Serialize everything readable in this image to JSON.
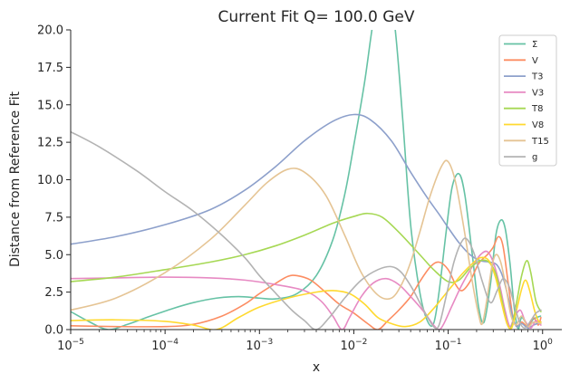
{
  "chart_data": {
    "type": "line",
    "title": "Current Fit Q= 100.0 GeV",
    "xlabel": "x",
    "ylabel": "Distance from Reference Fit",
    "xscale": "log",
    "xlim": [
      1e-05,
      1.6
    ],
    "ylim": [
      0,
      20
    ],
    "legend_placement": "top-right",
    "grid": false,
    "x_ticks": [
      {
        "value": 1e-05,
        "base": "10",
        "exp": "−5"
      },
      {
        "value": 0.0001,
        "base": "10",
        "exp": "−4"
      },
      {
        "value": 0.001,
        "base": "10",
        "exp": "−3"
      },
      {
        "value": 0.01,
        "base": "10",
        "exp": "−2"
      },
      {
        "value": 0.1,
        "base": "10",
        "exp": "−1"
      },
      {
        "value": 1,
        "base": "10",
        "exp": "0"
      }
    ],
    "y_ticks": [
      {
        "value": 0,
        "label": "0.0"
      },
      {
        "value": 2.5,
        "label": "2.5"
      },
      {
        "value": 5,
        "label": "5.0"
      },
      {
        "value": 7.5,
        "label": "7.5"
      },
      {
        "value": 10,
        "label": "10.0"
      },
      {
        "value": 12.5,
        "label": "12.5"
      },
      {
        "value": 15,
        "label": "15.0"
      },
      {
        "value": 17.5,
        "label": "17.5"
      },
      {
        "value": 20,
        "label": "20.0"
      }
    ],
    "series": [
      {
        "name": "Σ",
        "color": "#66c2a5",
        "points": [
          [
            1e-05,
            1.2
          ],
          [
            1.6e-05,
            0.5
          ],
          [
            2.5e-05,
            0.0
          ],
          [
            4e-05,
            0.35
          ],
          [
            7e-05,
            0.9
          ],
          [
            0.00012,
            1.4
          ],
          [
            0.0002,
            1.8
          ],
          [
            0.00035,
            2.1
          ],
          [
            0.0006,
            2.2
          ],
          [
            0.001,
            2.1
          ],
          [
            0.0015,
            2.05
          ],
          [
            0.0025,
            2.4
          ],
          [
            0.004,
            3.6
          ],
          [
            0.006,
            6.0
          ],
          [
            0.008,
            9.0
          ],
          [
            0.01,
            12.3
          ],
          [
            0.013,
            16.5
          ],
          [
            0.016,
            20.5
          ],
          [
            0.02,
            23.5
          ],
          [
            0.024,
            22.8
          ],
          [
            0.028,
            19.5
          ],
          [
            0.033,
            14.0
          ],
          [
            0.04,
            7.0
          ],
          [
            0.05,
            2.5
          ],
          [
            0.06,
            0.6
          ],
          [
            0.07,
            0.4
          ],
          [
            0.08,
            2.5
          ],
          [
            0.095,
            6.5
          ],
          [
            0.11,
            9.5
          ],
          [
            0.13,
            10.4
          ],
          [
            0.15,
            9.0
          ],
          [
            0.18,
            5.0
          ],
          [
            0.21,
            1.5
          ],
          [
            0.24,
            0.5
          ],
          [
            0.28,
            3.0
          ],
          [
            0.32,
            6.3
          ],
          [
            0.36,
            7.3
          ],
          [
            0.4,
            6.8
          ],
          [
            0.45,
            4.5
          ],
          [
            0.5,
            1.5
          ],
          [
            0.55,
            0.05
          ],
          [
            0.6,
            0.8
          ],
          [
            0.7,
            0.3
          ],
          [
            0.8,
            0.7
          ],
          [
            0.95,
            0.9
          ]
        ]
      },
      {
        "name": "V",
        "color": "#fc8d62",
        "points": [
          [
            1e-05,
            0.25
          ],
          [
            3e-05,
            0.2
          ],
          [
            0.0001,
            0.2
          ],
          [
            0.0002,
            0.35
          ],
          [
            0.0004,
            0.9
          ],
          [
            0.0007,
            1.7
          ],
          [
            0.001,
            2.4
          ],
          [
            0.0015,
            3.1
          ],
          [
            0.002,
            3.55
          ],
          [
            0.0025,
            3.6
          ],
          [
            0.0035,
            3.3
          ],
          [
            0.005,
            2.5
          ],
          [
            0.007,
            1.7
          ],
          [
            0.01,
            1.1
          ],
          [
            0.014,
            0.4
          ],
          [
            0.018,
            0.0
          ],
          [
            0.023,
            0.6
          ],
          [
            0.03,
            1.3
          ],
          [
            0.04,
            2.2
          ],
          [
            0.05,
            3.2
          ],
          [
            0.065,
            4.2
          ],
          [
            0.08,
            4.5
          ],
          [
            0.1,
            4.0
          ],
          [
            0.12,
            3.0
          ],
          [
            0.14,
            2.6
          ],
          [
            0.17,
            3.2
          ],
          [
            0.21,
            4.4
          ],
          [
            0.26,
            5.0
          ],
          [
            0.3,
            5.5
          ],
          [
            0.34,
            6.2
          ],
          [
            0.38,
            5.6
          ],
          [
            0.43,
            3.2
          ],
          [
            0.48,
            1.0
          ],
          [
            0.53,
            0.2
          ],
          [
            0.6,
            0.5
          ],
          [
            0.7,
            0.2
          ],
          [
            0.8,
            0.8
          ],
          [
            0.9,
            0.3
          ],
          [
            0.96,
            0.8
          ]
        ]
      },
      {
        "name": "T3",
        "color": "#8da0cb",
        "points": [
          [
            1e-05,
            5.7
          ],
          [
            3e-05,
            6.2
          ],
          [
            0.0001,
            7.0
          ],
          [
            0.0003,
            8.0
          ],
          [
            0.0007,
            9.3
          ],
          [
            0.0015,
            10.9
          ],
          [
            0.003,
            12.6
          ],
          [
            0.006,
            13.9
          ],
          [
            0.01,
            14.35
          ],
          [
            0.015,
            14.0
          ],
          [
            0.025,
            12.6
          ],
          [
            0.04,
            10.5
          ],
          [
            0.06,
            8.8
          ],
          [
            0.08,
            7.7
          ],
          [
            0.1,
            6.8
          ],
          [
            0.13,
            5.8
          ],
          [
            0.17,
            5.0
          ],
          [
            0.22,
            4.6
          ],
          [
            0.28,
            4.5
          ],
          [
            0.33,
            4.3
          ],
          [
            0.38,
            3.5
          ],
          [
            0.43,
            2.2
          ],
          [
            0.48,
            0.9
          ],
          [
            0.53,
            0.2
          ],
          [
            0.6,
            0.4
          ],
          [
            0.7,
            0.1
          ],
          [
            0.8,
            0.3
          ],
          [
            0.96,
            0.5
          ]
        ]
      },
      {
        "name": "V3",
        "color": "#e78ac3",
        "points": [
          [
            1e-05,
            3.4
          ],
          [
            3e-05,
            3.45
          ],
          [
            0.0001,
            3.5
          ],
          [
            0.0003,
            3.45
          ],
          [
            0.0007,
            3.3
          ],
          [
            0.0015,
            3.0
          ],
          [
            0.003,
            2.6
          ],
          [
            0.0045,
            1.9
          ],
          [
            0.006,
            0.9
          ],
          [
            0.0075,
            0.0
          ],
          [
            0.009,
            0.8
          ],
          [
            0.012,
            2.2
          ],
          [
            0.016,
            3.1
          ],
          [
            0.022,
            3.4
          ],
          [
            0.03,
            3.0
          ],
          [
            0.04,
            2.2
          ],
          [
            0.055,
            1.2
          ],
          [
            0.07,
            0.3
          ],
          [
            0.08,
            0.0
          ],
          [
            0.09,
            0.4
          ],
          [
            0.11,
            1.6
          ],
          [
            0.14,
            3.0
          ],
          [
            0.18,
            4.2
          ],
          [
            0.22,
            5.0
          ],
          [
            0.26,
            5.2
          ],
          [
            0.3,
            4.5
          ],
          [
            0.35,
            3.0
          ],
          [
            0.4,
            1.3
          ],
          [
            0.45,
            0.2
          ],
          [
            0.5,
            0.8
          ],
          [
            0.58,
            1.3
          ],
          [
            0.65,
            0.6
          ],
          [
            0.75,
            0.1
          ],
          [
            0.85,
            0.6
          ],
          [
            0.96,
            0.3
          ]
        ]
      },
      {
        "name": "T8",
        "color": "#a6d854",
        "points": [
          [
            1e-05,
            3.2
          ],
          [
            3e-05,
            3.5
          ],
          [
            0.0001,
            4.0
          ],
          [
            0.0003,
            4.5
          ],
          [
            0.0007,
            5.0
          ],
          [
            0.0015,
            5.6
          ],
          [
            0.003,
            6.3
          ],
          [
            0.006,
            7.1
          ],
          [
            0.01,
            7.55
          ],
          [
            0.014,
            7.75
          ],
          [
            0.02,
            7.5
          ],
          [
            0.03,
            6.5
          ],
          [
            0.05,
            5.0
          ],
          [
            0.07,
            4.0
          ],
          [
            0.1,
            3.2
          ],
          [
            0.13,
            3.3
          ],
          [
            0.17,
            4.1
          ],
          [
            0.22,
            4.6
          ],
          [
            0.27,
            4.5
          ],
          [
            0.32,
            3.7
          ],
          [
            0.37,
            2.0
          ],
          [
            0.42,
            0.4
          ],
          [
            0.47,
            0.2
          ],
          [
            0.53,
            1.8
          ],
          [
            0.6,
            3.6
          ],
          [
            0.68,
            4.6
          ],
          [
            0.75,
            3.8
          ],
          [
            0.85,
            1.9
          ],
          [
            0.96,
            1.2
          ]
        ]
      },
      {
        "name": "V8",
        "color": "#ffd92f",
        "points": [
          [
            1e-05,
            0.6
          ],
          [
            3e-05,
            0.65
          ],
          [
            0.0001,
            0.55
          ],
          [
            0.0002,
            0.3
          ],
          [
            0.00035,
            0.0
          ],
          [
            0.0006,
            0.8
          ],
          [
            0.001,
            1.5
          ],
          [
            0.002,
            2.1
          ],
          [
            0.004,
            2.5
          ],
          [
            0.006,
            2.6
          ],
          [
            0.009,
            2.4
          ],
          [
            0.013,
            1.7
          ],
          [
            0.018,
            0.8
          ],
          [
            0.025,
            0.4
          ],
          [
            0.035,
            0.2
          ],
          [
            0.05,
            0.5
          ],
          [
            0.07,
            1.4
          ],
          [
            0.1,
            2.6
          ],
          [
            0.14,
            3.7
          ],
          [
            0.18,
            4.4
          ],
          [
            0.22,
            4.8
          ],
          [
            0.27,
            4.6
          ],
          [
            0.32,
            3.4
          ],
          [
            0.37,
            1.7
          ],
          [
            0.42,
            0.4
          ],
          [
            0.47,
            0.1
          ],
          [
            0.53,
            1.3
          ],
          [
            0.6,
            2.7
          ],
          [
            0.66,
            3.3
          ],
          [
            0.73,
            2.6
          ],
          [
            0.82,
            1.3
          ],
          [
            0.9,
            0.6
          ],
          [
            0.96,
            0.5
          ]
        ]
      },
      {
        "name": "T15",
        "color": "#e5c494",
        "points": [
          [
            1e-05,
            1.3
          ],
          [
            3e-05,
            2.1
          ],
          [
            0.0001,
            3.8
          ],
          [
            0.0003,
            6.0
          ],
          [
            0.0007,
            8.3
          ],
          [
            0.0012,
            9.8
          ],
          [
            0.002,
            10.7
          ],
          [
            0.003,
            10.5
          ],
          [
            0.005,
            9.0
          ],
          [
            0.008,
            6.3
          ],
          [
            0.012,
            3.8
          ],
          [
            0.018,
            2.3
          ],
          [
            0.025,
            2.1
          ],
          [
            0.032,
            3.0
          ],
          [
            0.04,
            4.5
          ],
          [
            0.05,
            6.5
          ],
          [
            0.065,
            9.0
          ],
          [
            0.085,
            10.9
          ],
          [
            0.1,
            11.2
          ],
          [
            0.12,
            9.8
          ],
          [
            0.15,
            6.4
          ],
          [
            0.18,
            3.2
          ],
          [
            0.21,
            1.0
          ],
          [
            0.23,
            0.4
          ],
          [
            0.26,
            2.2
          ],
          [
            0.29,
            4.2
          ],
          [
            0.32,
            5.0
          ],
          [
            0.36,
            4.5
          ],
          [
            0.41,
            2.8
          ],
          [
            0.46,
            1.0
          ],
          [
            0.52,
            0.3
          ],
          [
            0.6,
            0.9
          ],
          [
            0.7,
            0.2
          ],
          [
            0.8,
            0.5
          ],
          [
            0.96,
            0.4
          ]
        ]
      },
      {
        "name": "g",
        "color": "#b3b3b3",
        "points": [
          [
            1e-05,
            13.2
          ],
          [
            2e-05,
            12.2
          ],
          [
            5e-05,
            10.6
          ],
          [
            0.0001,
            9.2
          ],
          [
            0.0002,
            7.9
          ],
          [
            0.0004,
            6.3
          ],
          [
            0.0007,
            4.8
          ],
          [
            0.001,
            3.6
          ],
          [
            0.0015,
            2.4
          ],
          [
            0.0022,
            1.3
          ],
          [
            0.003,
            0.6
          ],
          [
            0.004,
            0.0
          ],
          [
            0.0055,
            0.8
          ],
          [
            0.008,
            2.1
          ],
          [
            0.012,
            3.3
          ],
          [
            0.018,
            4.0
          ],
          [
            0.025,
            4.2
          ],
          [
            0.032,
            3.8
          ],
          [
            0.042,
            2.7
          ],
          [
            0.055,
            1.3
          ],
          [
            0.07,
            0.2
          ],
          [
            0.08,
            0.3
          ],
          [
            0.095,
            2.2
          ],
          [
            0.115,
            4.5
          ],
          [
            0.14,
            5.9
          ],
          [
            0.16,
            6.0
          ],
          [
            0.19,
            5.0
          ],
          [
            0.23,
            3.2
          ],
          [
            0.28,
            1.8
          ],
          [
            0.33,
            2.6
          ],
          [
            0.38,
            3.4
          ],
          [
            0.44,
            2.9
          ],
          [
            0.5,
            1.7
          ],
          [
            0.57,
            0.5
          ],
          [
            0.65,
            0.1
          ],
          [
            0.75,
            0.6
          ],
          [
            0.85,
            1.1
          ],
          [
            0.96,
            1.3
          ]
        ]
      }
    ]
  }
}
